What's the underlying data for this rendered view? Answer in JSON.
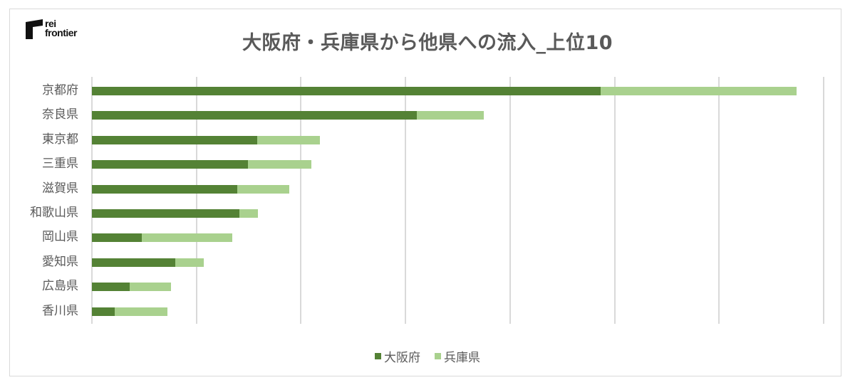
{
  "brand": {
    "line1": "rei",
    "line2": "frontier"
  },
  "chart_data": {
    "type": "bar",
    "orientation": "horizontal",
    "stacked": true,
    "title": "大阪府・兵庫県から他県への流入_上位10",
    "xlabel": "",
    "ylabel": "",
    "categories": [
      "京都府",
      "奈良県",
      "東京都",
      "三重県",
      "滋賀県",
      "和歌山県",
      "岡山県",
      "愛知県",
      "広島県",
      "香川県"
    ],
    "series": [
      {
        "name": "大阪府",
        "color": "#548235",
        "values": [
          4.87,
          3.11,
          1.58,
          1.49,
          1.39,
          1.41,
          0.48,
          0.8,
          0.36,
          0.22
        ]
      },
      {
        "name": "兵庫県",
        "color": "#a9d18e",
        "values": [
          1.87,
          0.64,
          0.6,
          0.61,
          0.5,
          0.18,
          0.86,
          0.27,
          0.4,
          0.5
        ]
      }
    ],
    "value_units": "gridline intervals (axis tick labels not shown)",
    "xlim": [
      0,
      7
    ],
    "gridlines": 8,
    "grid": true,
    "legend_position": "bottom"
  }
}
